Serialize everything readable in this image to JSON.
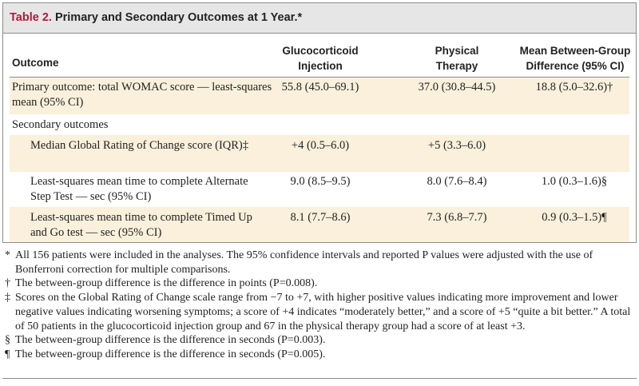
{
  "table": {
    "label": "Table 2.",
    "title": "Primary and Secondary Outcomes at 1 Year.*",
    "headers": {
      "outcome": "Outcome",
      "glucocorticoid": [
        "Glucocorticoid",
        "Injection"
      ],
      "physical": [
        "Physical",
        "Therapy"
      ],
      "difference": [
        "Mean Between-Group",
        "Difference (95% CI)"
      ]
    },
    "rows": [
      {
        "outcome": "Primary outcome: total WOMAC score — least-squares mean (95% CI)",
        "gluco": "55.8 (45.0–69.1)",
        "pt": "37.0 (30.8–44.5)",
        "diff": "18.8 (5.0–32.6)†"
      },
      {
        "outcome": "Secondary outcomes",
        "gluco": "",
        "pt": "",
        "diff": ""
      },
      {
        "outcome": "Median Global Rating of Change score (IQR)‡",
        "gluco": "+4 (0.5–6.0)",
        "pt": "+5 (3.3–6.0)",
        "diff": ""
      },
      {
        "outcome": "Least-squares mean time to complete Alternate Step Test — sec (95% CI)",
        "gluco": "9.0 (8.5–9.5)",
        "pt": "8.0 (7.6–8.4)",
        "diff": "1.0 (0.3–1.6)§"
      },
      {
        "outcome": "Least-squares mean time to complete Timed Up and Go test — sec (95% CI)",
        "gluco": "8.1 (7.7–8.6)",
        "pt": "7.3 (6.8–7.7)",
        "diff": "0.9 (0.3–1.5)¶"
      }
    ]
  },
  "footnotes": [
    {
      "mark": "*",
      "text": "All 156 patients were included in the analyses. The 95% confidence intervals and reported P values were adjusted with the use of Bonferroni correction for multiple comparisons."
    },
    {
      "mark": "†",
      "text": "The between-group difference is the difference in points (P=0.008)."
    },
    {
      "mark": "‡",
      "text": "Scores on the Global Rating of Change scale range from −7 to +7, with higher positive values indicating more improvement and lower negative values indicating worsening symptoms; a score of +4 indicates “moderately better,” and a score of +5 “quite a bit better.” A total of 50 patients in the glucocorticoid injection group and 67 in the physical therapy group had a score of at least +3."
    },
    {
      "mark": "§",
      "text": "The between-group difference is the difference in seconds (P=0.003)."
    },
    {
      "mark": "¶",
      "text": "The between-group difference is the difference in seconds (P=0.005)."
    }
  ]
}
